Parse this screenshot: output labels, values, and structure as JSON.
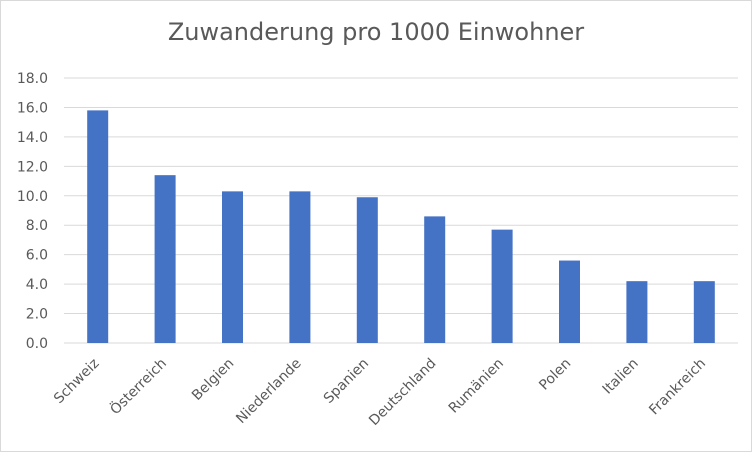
{
  "chart_data": {
    "type": "bar",
    "title": "Zuwanderung pro 1000 Einwohner",
    "xlabel": "",
    "ylabel": "",
    "categories": [
      "Schweiz",
      "Österreich",
      "Belgien",
      "Niederlande",
      "Spanien",
      "Deutschland",
      "Rumänien",
      "Polen",
      "Italien",
      "Frankreich"
    ],
    "values": [
      15.8,
      11.4,
      10.3,
      10.3,
      9.9,
      8.6,
      7.7,
      5.6,
      4.2,
      4.2
    ],
    "ylim": [
      0,
      18
    ],
    "yticks": [
      "0.0",
      "2.0",
      "4.0",
      "6.0",
      "8.0",
      "10.0",
      "12.0",
      "14.0",
      "16.0",
      "18.0"
    ],
    "grid": true,
    "legend": "none",
    "bar_color": "#4472c4",
    "gridline_color": "#d9d9d9"
  }
}
